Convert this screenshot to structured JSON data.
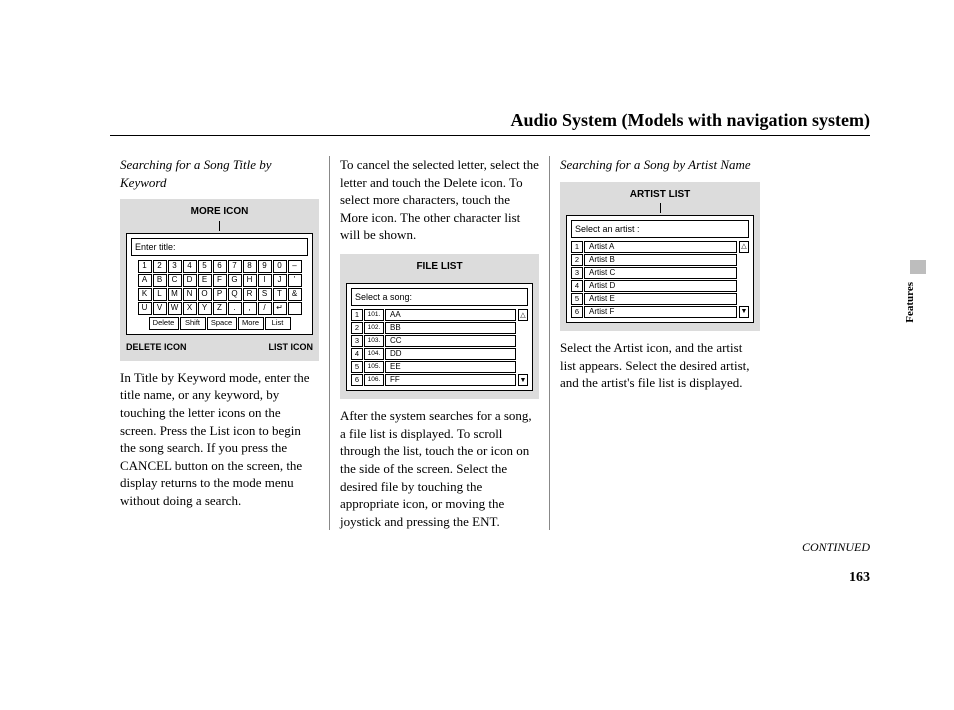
{
  "page_title": "Audio System (Models with navigation system)",
  "side_label": "Features",
  "continued": "CONTINUED",
  "page_number": "163",
  "col1": {
    "heading": "Searching for a Song Title by Keyword",
    "top_label": "MORE ICON",
    "bottom_left_label": "DELETE ICON",
    "bottom_right_label": "LIST ICON",
    "enter_title": "Enter title:",
    "rows": {
      "r1": [
        "1",
        "2",
        "3",
        "4",
        "5",
        "6",
        "7",
        "8",
        "9",
        "0",
        "–"
      ],
      "r2": [
        "A",
        "B",
        "C",
        "D",
        "E",
        "F",
        "G",
        "H",
        "I",
        "J",
        "'"
      ],
      "r3": [
        "K",
        "L",
        "M",
        "N",
        "O",
        "P",
        "Q",
        "R",
        "S",
        "T",
        "&"
      ],
      "r4": [
        "U",
        "V",
        "W",
        "X",
        "Y",
        "Z",
        ".",
        ",",
        "/",
        "↵",
        ""
      ]
    },
    "ctrl": {
      "delete": "Delete",
      "shift": "Shift",
      "space": "Space",
      "more": "More",
      "list": "List"
    },
    "body": "In Title by Keyword mode, enter the title name, or any keyword, by touching the letter icons on the screen. Press the List icon to begin the song search. If you press the CANCEL button on the screen, the display returns to the mode menu without doing a search."
  },
  "col2": {
    "top_body": "To cancel the selected letter, select the letter and touch the Delete icon. To select more characters, touch the More icon. The other character list will be shown.",
    "box_label": "FILE LIST",
    "select_head": "Select a song:",
    "rows": [
      {
        "n": "1",
        "s": "101.",
        "t": "AA"
      },
      {
        "n": "2",
        "s": "102.",
        "t": "BB"
      },
      {
        "n": "3",
        "s": "103.",
        "t": "CC"
      },
      {
        "n": "4",
        "s": "104.",
        "t": "DD"
      },
      {
        "n": "5",
        "s": "105.",
        "t": "EE"
      },
      {
        "n": "6",
        "s": "106.",
        "t": "FF"
      }
    ],
    "scroll_up": "△",
    "scroll_down": "▼",
    "bottom_body": "After the system searches for a song, a file list is displayed. To scroll through the list, touch the      or      icon on the side of the screen. Select the desired file by touching the appropriate icon, or moving the joystick and pressing the ENT."
  },
  "col3": {
    "heading": "Searching for a Song by Artist Name",
    "box_label": "ARTIST LIST",
    "select_head": "Select an artist :",
    "rows": [
      {
        "n": "1",
        "t": "Artist  A"
      },
      {
        "n": "2",
        "t": "Artist  B"
      },
      {
        "n": "3",
        "t": "Artist  C"
      },
      {
        "n": "4",
        "t": "Artist  D"
      },
      {
        "n": "5",
        "t": "Artist  E"
      },
      {
        "n": "6",
        "t": "Artist  F"
      }
    ],
    "scroll_up": "△",
    "scroll_down": "▼",
    "body": "Select the Artist icon, and the artist list appears. Select the desired artist, and the artist's file list is displayed."
  }
}
